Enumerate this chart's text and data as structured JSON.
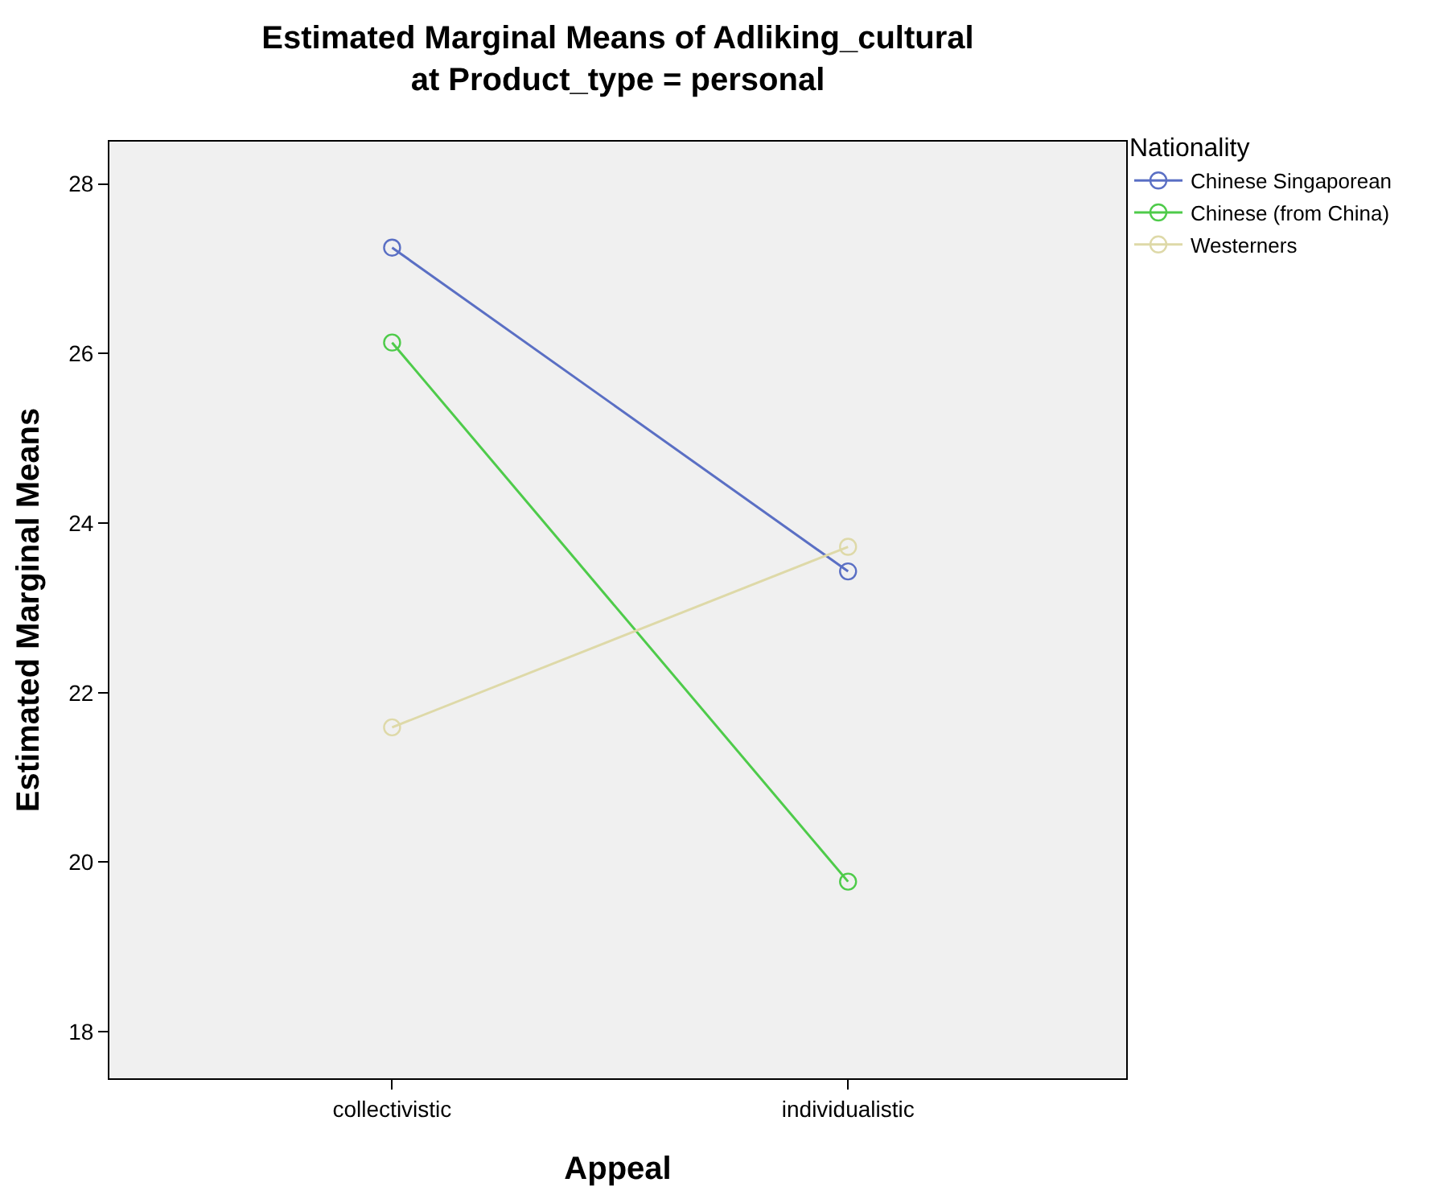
{
  "chart_data": {
    "type": "line",
    "title": "Estimated Marginal Means of Adliking_cultural",
    "subtitle": "at Product_type = personal",
    "xlabel": "Appeal",
    "ylabel": "Estimated Marginal Means",
    "legend_title": "Nationality",
    "categories": [
      "collectivistic",
      "individualistic"
    ],
    "series": [
      {
        "name": "Chinese Singaporean",
        "color": "#5a6fc4",
        "values": [
          27.25,
          23.43
        ]
      },
      {
        "name": "Chinese (from China)",
        "color": "#4ecb4a",
        "values": [
          26.13,
          19.77
        ]
      },
      {
        "name": "Westerners",
        "color": "#ded9a8",
        "values": [
          21.59,
          23.72
        ]
      }
    ],
    "ylim": [
      17.45,
      28.5
    ],
    "yticks": [
      18,
      20,
      22,
      24,
      26,
      28
    ],
    "grid": false,
    "legend": "top right",
    "marker": "circle",
    "line_style": "solid"
  }
}
